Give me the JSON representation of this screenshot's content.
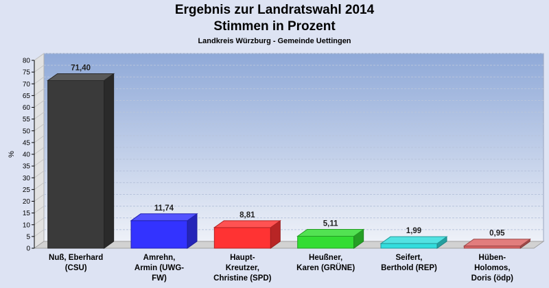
{
  "chart_data": {
    "type": "bar",
    "title": "Ergebnis zur Landratswahl 2014",
    "title_line2": "Stimmen in Prozent",
    "subtitle": "Landkreis Würzburg - Gemeinde Uettingen",
    "ylabel": "%",
    "ylim": [
      0,
      80
    ],
    "ytick_step": 5,
    "grid": true,
    "categories": [
      [
        "Nuß, Eberhard",
        "(CSU)"
      ],
      [
        "Amrehn,",
        "Armin (UWG-",
        "FW)"
      ],
      [
        "Haupt-",
        "Kreutzer,",
        "Christine (SPD)"
      ],
      [
        "Heußner,",
        "Karen (GRÜNE)"
      ],
      [
        "Seifert,",
        "Berthold (REP)"
      ],
      [
        "Hüben-",
        "Holomos,",
        "Doris (ödp)"
      ]
    ],
    "values": [
      71.4,
      11.74,
      8.81,
      5.11,
      1.99,
      0.95
    ],
    "value_labels": [
      "71,40",
      "11,74",
      "8,81",
      "5,11",
      "1,99",
      "0,95"
    ],
    "colors": [
      "#3a3a3a",
      "#3333ff",
      "#ff3333",
      "#33dd33",
      "#33dddd",
      "#dd6666"
    ]
  }
}
